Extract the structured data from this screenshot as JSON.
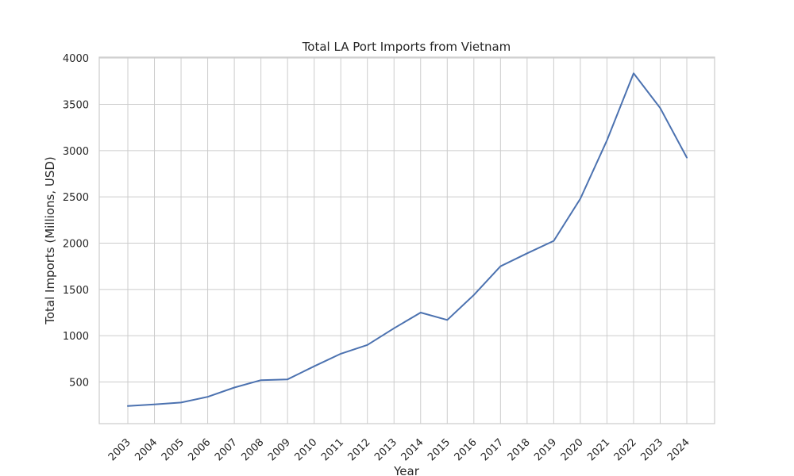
{
  "chart_data": {
    "type": "line",
    "title": "Total LA Port Imports from Vietnam",
    "xlabel": "Year",
    "ylabel": "Total Imports (Millions, USD)",
    "x": [
      "2003",
      "2004",
      "2005",
      "2006",
      "2007",
      "2008",
      "2009",
      "2010",
      "2011",
      "2012",
      "2013",
      "2014",
      "2015",
      "2016",
      "2017",
      "2018",
      "2019",
      "2020",
      "2021",
      "2022",
      "2023",
      "2024"
    ],
    "series": [
      {
        "values": [
          240,
          258,
          278,
          340,
          440,
          520,
          528,
          670,
          805,
          900,
          1080,
          1250,
          1170,
          1440,
          1750,
          1890,
          2025,
          2480,
          3110,
          3835,
          3460,
          2925
        ]
      }
    ],
    "yticks": [
      500,
      1000,
      1500,
      2000,
      2500,
      3000,
      3500,
      4000
    ],
    "ylim": [
      50,
      4010
    ],
    "grid": true,
    "legend": "none",
    "line_color": "#4c72b0"
  }
}
